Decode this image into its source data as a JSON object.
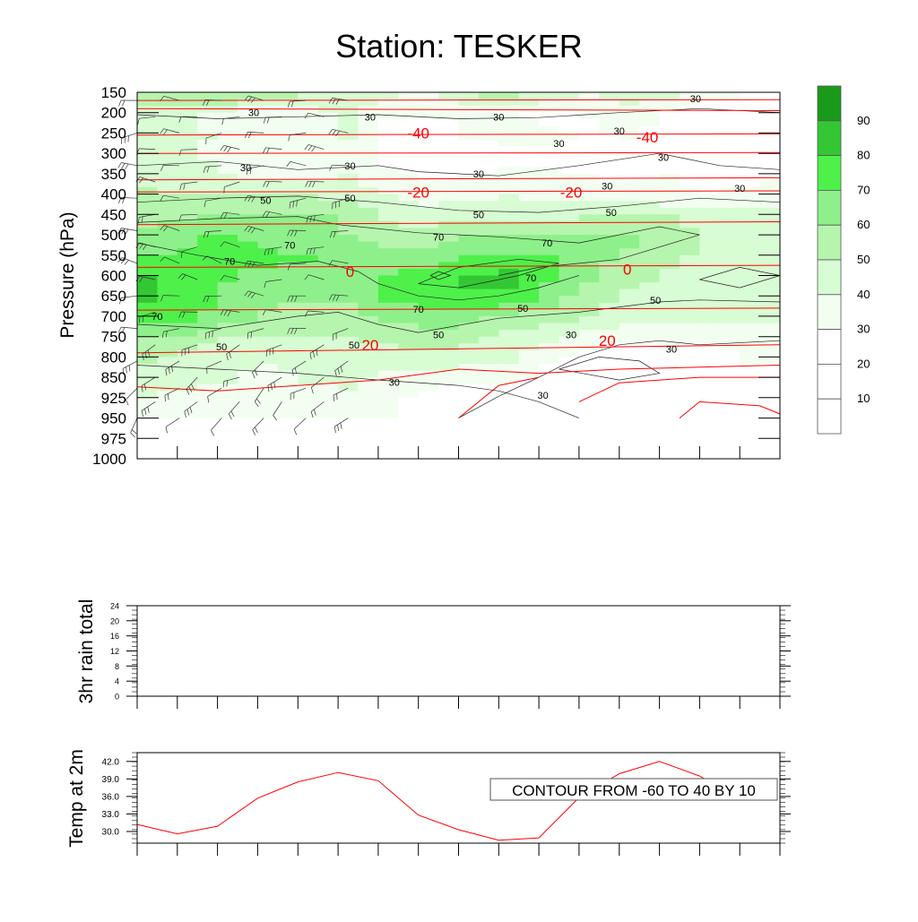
{
  "title": "Station: TESKER",
  "chart_data": [
    {
      "type": "heatmap",
      "panel": "time-height cross section",
      "ylabel": "Pressure (hPa)",
      "y_ticks": [
        "150",
        "200",
        "250",
        "300",
        "350",
        "400",
        "450",
        "500",
        "550",
        "600",
        "650",
        "700",
        "750",
        "800",
        "850",
        "925",
        "950",
        "975",
        "1000"
      ],
      "colorbar_labels": [
        "90",
        "80",
        "70",
        "60",
        "50",
        "40",
        "30",
        "20",
        "10"
      ],
      "shading_colors": [
        "#ffffff",
        "#ffffff",
        "#ffffff",
        "#f2fff0",
        "#d8fcd3",
        "#b6f5ae",
        "#8ef08a",
        "#4ef04a",
        "#33c733",
        "#1a9a1a"
      ],
      "rh_contour_labels": [
        {
          "text": "30",
          "x": 2.9,
          "p": 200
        },
        {
          "text": "30",
          "x": 5.8,
          "p": 210
        },
        {
          "text": "30",
          "x": 9.0,
          "p": 210
        },
        {
          "text": "30",
          "x": 10.5,
          "p": 275
        },
        {
          "text": "30",
          "x": 12.0,
          "p": 245
        },
        {
          "text": "30",
          "x": 13.9,
          "p": 165
        },
        {
          "text": "30",
          "x": 2.7,
          "p": 335
        },
        {
          "text": "30",
          "x": 5.3,
          "p": 330
        },
        {
          "text": "30",
          "x": 8.5,
          "p": 350
        },
        {
          "text": "30",
          "x": 13.1,
          "p": 310
        },
        {
          "text": "30",
          "x": 11.7,
          "p": 380
        },
        {
          "text": "30",
          "x": 15.0,
          "p": 385
        },
        {
          "text": "50",
          "x": 3.2,
          "p": 415
        },
        {
          "text": "50",
          "x": 5.3,
          "p": 410
        },
        {
          "text": "50",
          "x": 8.5,
          "p": 450
        },
        {
          "text": "50",
          "x": 11.8,
          "p": 445
        },
        {
          "text": "70",
          "x": 3.8,
          "p": 525
        },
        {
          "text": "70",
          "x": 2.3,
          "p": 565
        },
        {
          "text": "70",
          "x": 7.5,
          "p": 505
        },
        {
          "text": "70",
          "x": 10.2,
          "p": 520
        },
        {
          "text": "70",
          "x": 9.8,
          "p": 605
        },
        {
          "text": "70",
          "x": 7.0,
          "p": 682
        },
        {
          "text": "70",
          "x": 0.5,
          "p": 700
        },
        {
          "text": "50",
          "x": 9.6,
          "p": 680
        },
        {
          "text": "50",
          "x": 12.9,
          "p": 660
        },
        {
          "text": "50",
          "x": 2.1,
          "p": 775
        },
        {
          "text": "50",
          "x": 5.4,
          "p": 770
        },
        {
          "text": "50",
          "x": 7.5,
          "p": 745
        },
        {
          "text": "30",
          "x": 10.8,
          "p": 745
        },
        {
          "text": "30",
          "x": 13.3,
          "p": 780
        },
        {
          "text": "30",
          "x": 6.4,
          "p": 868
        },
        {
          "text": "30",
          "x": 10.1,
          "p": 915
        }
      ],
      "temp_contour_labels": [
        {
          "text": "-40",
          "x": 7.0,
          "p": 250
        },
        {
          "text": "-40",
          "x": 12.7,
          "p": 260
        },
        {
          "text": "-20",
          "x": 7.0,
          "p": 395
        },
        {
          "text": "-20",
          "x": 10.8,
          "p": 395
        },
        {
          "text": "0",
          "x": 5.3,
          "p": 590
        },
        {
          "text": "0",
          "x": 12.2,
          "p": 585
        },
        {
          "text": "20",
          "x": 5.8,
          "p": 770
        },
        {
          "text": "20",
          "x": 11.7,
          "p": 760
        }
      ]
    },
    {
      "type": "line",
      "ylabel": "3hr rain total",
      "y_ticks": [
        "24",
        "20",
        "16",
        "12",
        "8",
        "4",
        "0"
      ],
      "ylim": [
        0,
        24
      ],
      "x": [
        0,
        1,
        2,
        3,
        4,
        5,
        6,
        7,
        8,
        9,
        10,
        11,
        12,
        13,
        14,
        15,
        16
      ],
      "values": [
        0,
        0,
        0,
        0,
        0,
        0,
        0,
        0,
        0,
        0,
        0,
        0,
        0,
        0,
        0,
        0,
        0
      ]
    },
    {
      "type": "line",
      "ylabel": "Temp at 2m",
      "y_ticks": [
        "42.0",
        "39.0",
        "36.0",
        "33.0",
        "30.0"
      ],
      "ylim": [
        28.0,
        43.5
      ],
      "x": [
        0,
        1,
        2,
        3,
        4,
        5,
        6,
        7,
        8,
        9,
        10,
        11,
        12,
        13,
        14,
        15
      ],
      "values": [
        31.2,
        29.6,
        30.9,
        35.7,
        38.5,
        40.1,
        38.7,
        32.8,
        30.3,
        28.5,
        28.9,
        35.8,
        39.9,
        42.0,
        39.5,
        35.5
      ],
      "annotation": "CONTOUR FROM -60 TO 40 BY 10",
      "line_color": "#ff0000"
    }
  ]
}
